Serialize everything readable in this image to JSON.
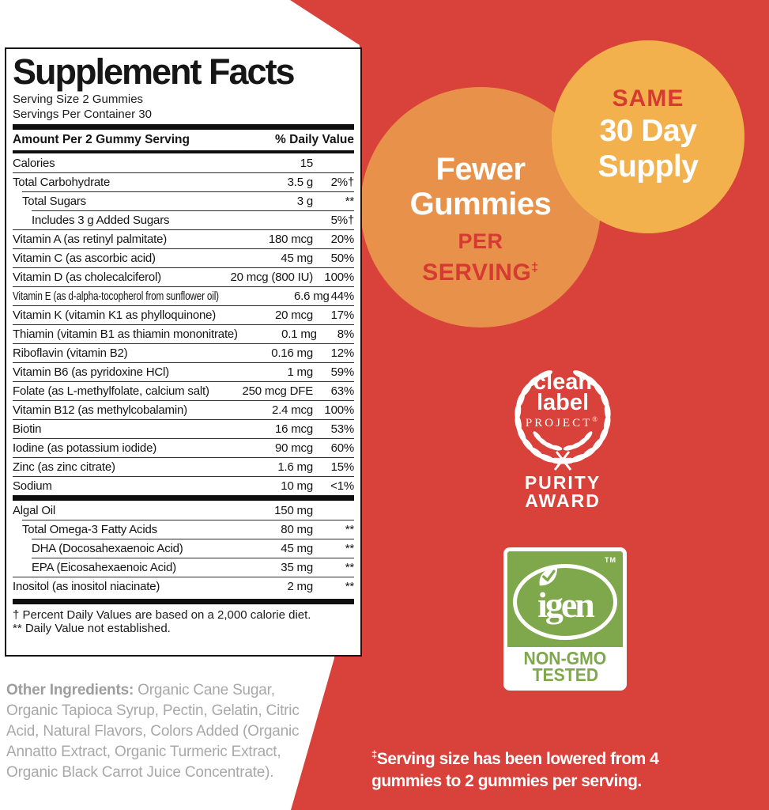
{
  "panel": {
    "title": "Supplement Facts",
    "serving_size": "Serving Size 2 Gummies",
    "servings_per_container": "Servings Per Container 30",
    "header": {
      "amount_label": "Amount Per 2 Gummy Serving",
      "dv_label": "% Daily Value"
    },
    "rows": [
      {
        "name": "Calories",
        "amount": "15",
        "dv": "",
        "indent": 0
      },
      {
        "name": "Total Carbohydrate",
        "amount": "3.5 g",
        "dv": "2%†",
        "indent": 0
      },
      {
        "name": "Total Sugars",
        "amount": "3 g",
        "dv": "**",
        "indent": 1
      },
      {
        "name": "Includes 3 g Added Sugars",
        "amount": "",
        "dv": "5%†",
        "indent": 2
      },
      {
        "name": "Vitamin A (as retinyl palmitate)",
        "amount": "180 mcg",
        "dv": "20%",
        "indent": 0
      },
      {
        "name": "Vitamin C (as ascorbic acid)",
        "amount": "45 mg",
        "dv": "50%",
        "indent": 0
      },
      {
        "name": "Vitamin D (as cholecalciferol)",
        "amount": "20 mcg (800 IU)",
        "dv": "100%",
        "indent": 0
      },
      {
        "name": "Vitamin E (as d-alpha-tocopherol from sunflower oil)",
        "amount": "6.6 mg",
        "dv": "44%",
        "indent": 0,
        "condensed": true
      },
      {
        "name": "Vitamin K (vitamin K1 as phylloquinone)",
        "amount": "20 mcg",
        "dv": "17%",
        "indent": 0
      },
      {
        "name": "Thiamin (vitamin B1 as thiamin mononitrate)",
        "amount": "0.1 mg",
        "dv": "8%",
        "indent": 0
      },
      {
        "name": "Riboflavin (vitamin B2)",
        "amount": "0.16 mg",
        "dv": "12%",
        "indent": 0
      },
      {
        "name": "Vitamin B6 (as pyridoxine HCl)",
        "amount": "1 mg",
        "dv": "59%",
        "indent": 0
      },
      {
        "name": "Folate (as L-methylfolate, calcium salt)",
        "amount": "250 mcg DFE",
        "dv": "63%",
        "indent": 0
      },
      {
        "name": "Vitamin B12 (as methylcobalamin)",
        "amount": "2.4 mcg",
        "dv": "100%",
        "indent": 0
      },
      {
        "name": "Biotin",
        "amount": "16 mcg",
        "dv": "53%",
        "indent": 0
      },
      {
        "name": "Iodine (as potassium iodide)",
        "amount": "90 mcg",
        "dv": "60%",
        "indent": 0
      },
      {
        "name": "Zinc (as zinc citrate)",
        "amount": "1.6 mg",
        "dv": "15%",
        "indent": 0
      },
      {
        "name": "Sodium",
        "amount": "10 mg",
        "dv": "<1%",
        "indent": 0
      },
      {
        "name": "Algal Oil",
        "amount": "150 mg",
        "dv": "",
        "indent": 0,
        "bar_before": true
      },
      {
        "name": "Total Omega-3 Fatty Acids",
        "amount": "80 mg",
        "dv": "**",
        "indent": 1
      },
      {
        "name": "DHA (Docosahexaenoic Acid)",
        "amount": "45 mg",
        "dv": "**",
        "indent": 2
      },
      {
        "name": "EPA (Eicosahexaenoic Acid)",
        "amount": "35 mg",
        "dv": "**",
        "indent": 2
      },
      {
        "name": "Inositol (as inositol niacinate)",
        "amount": "2 mg",
        "dv": "**",
        "indent": 0
      }
    ],
    "footnotes": [
      "† Percent Daily Values are based on a 2,000 calorie diet.",
      "** Daily Value not established."
    ]
  },
  "other_ingredients": {
    "label": "Other Ingredients:",
    "text": " Organic Cane Sugar, Organic Tapioca Syrup, Pectin, Gelatin, Citric Acid, Natural Flavors, Colors Added (Organic Annatto Extract, Organic Turmeric Extract, Organic Black Carrot Juice Concentrate)."
  },
  "badges": {
    "fewer": {
      "line1": "Fewer",
      "line2": "Gummies",
      "line3": "PER",
      "line4": "SERVING",
      "marker": "‡"
    },
    "same": {
      "line1": "SAME",
      "line2": "30 Day",
      "line3": "Supply"
    },
    "clean_label": {
      "word1": "clean",
      "word2": "label",
      "word3": "PROJECT",
      "reg": "®",
      "award1": "PURITY",
      "award2": "AWARD"
    },
    "igen": {
      "name": "igen",
      "tm": "TM",
      "line1": "NON-GMO",
      "line2": "TESTED"
    }
  },
  "footnote": {
    "marker": "‡",
    "text": "Serving size has been lowered from 4 gummies to 2 gummies per serving."
  },
  "colors": {
    "background_red": "#D9413B",
    "circle_orange": "#E8914A",
    "circle_yellow": "#F2B14C",
    "accent_red_text": "#D63A32",
    "igen_green": "#7FA74B",
    "ingredients_gray": "#A8A8A8"
  }
}
